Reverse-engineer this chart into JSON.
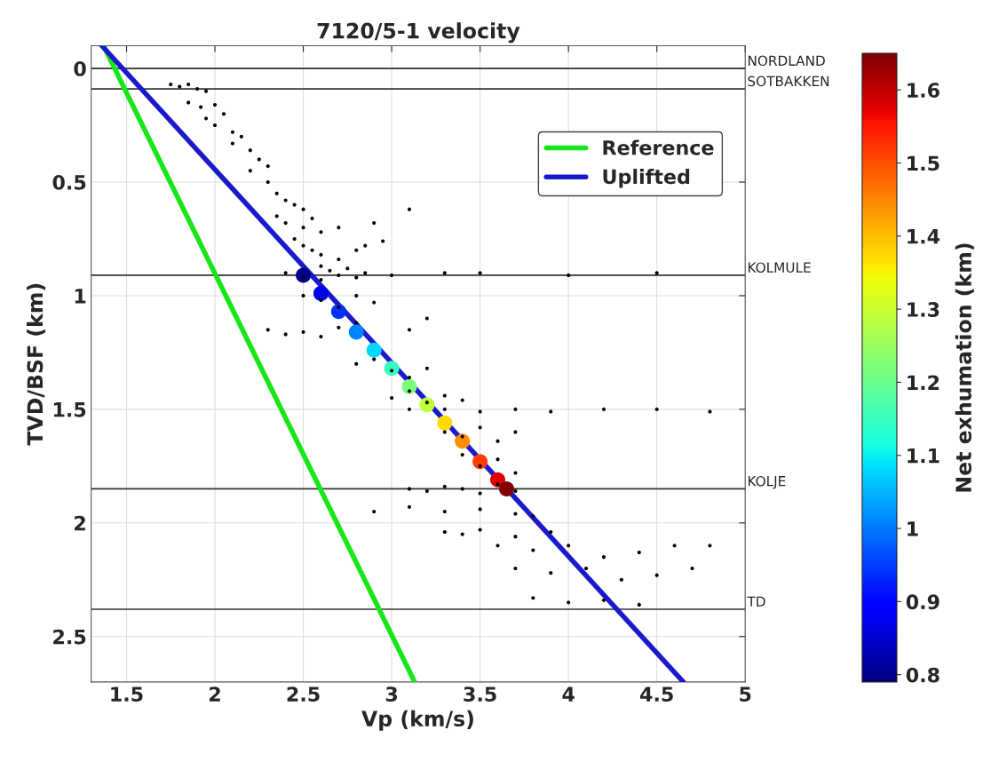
{
  "chart_data": {
    "type": "scatter",
    "title": "7120/5-1 velocity",
    "xlabel": "Vp (km/s)",
    "ylabel": "TVD/BSF (km)",
    "clabel": "Net exhumation (km)",
    "xlim": [
      1.3,
      5
    ],
    "ylim": [
      2.7,
      -0.1
    ],
    "xticks": [
      1.5,
      2,
      2.5,
      3,
      3.5,
      4,
      4.5,
      5
    ],
    "yticks": [
      0,
      0.5,
      1,
      1.5,
      2,
      2.5
    ],
    "clim": [
      0.79,
      1.65
    ],
    "cticks": [
      0.8,
      0.9,
      1,
      1.1,
      1.2,
      1.3,
      1.4,
      1.5,
      1.6
    ],
    "grid": true,
    "legend": "top right",
    "series": [
      {
        "color": "#000000",
        "marker": "circle",
        "x": [
          1.75,
          1.8,
          1.85,
          1.9,
          1.95,
          1.85,
          1.92,
          2.0,
          2.05,
          1.95,
          2.0,
          2.1,
          2.15,
          2.1,
          2.2,
          2.25,
          2.3,
          2.2,
          2.3,
          2.35,
          2.4,
          2.45,
          2.5,
          2.35,
          2.4,
          2.5,
          2.55,
          2.45,
          2.5,
          2.6,
          2.7,
          2.9,
          3.1,
          2.55,
          2.6,
          2.7,
          2.8,
          2.85,
          2.95,
          2.6,
          2.65,
          2.75,
          2.85,
          3.3,
          2.4,
          2.5,
          2.6,
          2.7,
          2.8,
          3.0,
          3.5,
          4.0,
          4.5,
          2.5,
          2.6,
          2.7,
          2.8,
          2.9,
          3.2,
          2.3,
          2.4,
          2.5,
          2.6,
          2.7,
          2.8,
          3.1,
          2.8,
          2.9,
          3.0,
          3.1,
          3.2,
          3.0,
          3.1,
          3.2,
          3.3,
          3.4,
          3.1,
          3.3,
          3.5,
          3.7,
          3.9,
          4.2,
          4.5,
          4.8,
          3.3,
          3.4,
          3.5,
          3.6,
          3.7,
          3.4,
          3.5,
          3.6,
          3.7,
          3.1,
          3.2,
          3.3,
          3.4,
          3.5,
          3.6,
          3.7,
          2.9,
          3.1,
          3.3,
          3.5,
          3.7,
          3.8,
          3.3,
          3.4,
          3.5,
          3.7,
          3.9,
          3.6,
          3.8,
          4.0,
          4.2,
          4.4,
          4.6,
          4.8,
          3.7,
          3.9,
          4.1,
          4.3,
          4.5,
          4.7,
          3.8,
          4.0,
          4.2,
          4.4
        ],
        "values": [
          0.07,
          0.08,
          0.07,
          0.09,
          0.1,
          0.15,
          0.17,
          0.16,
          0.2,
          0.22,
          0.25,
          0.28,
          0.3,
          0.33,
          0.36,
          0.4,
          0.43,
          0.45,
          0.5,
          0.55,
          0.58,
          0.6,
          0.62,
          0.65,
          0.68,
          0.7,
          0.66,
          0.75,
          0.78,
          0.72,
          0.7,
          0.68,
          0.62,
          0.8,
          0.82,
          0.84,
          0.8,
          0.78,
          0.76,
          0.87,
          0.89,
          0.88,
          0.9,
          0.9,
          0.9,
          0.92,
          0.93,
          0.91,
          0.92,
          0.91,
          0.9,
          0.91,
          0.9,
          1.0,
          1.02,
          1.05,
          1.0,
          1.03,
          1.1,
          1.15,
          1.17,
          1.16,
          1.18,
          1.14,
          1.12,
          1.15,
          1.3,
          1.28,
          1.33,
          1.36,
          1.32,
          1.45,
          1.42,
          1.47,
          1.44,
          1.46,
          1.5,
          1.5,
          1.51,
          1.5,
          1.51,
          1.5,
          1.5,
          1.51,
          1.6,
          1.62,
          1.58,
          1.64,
          1.6,
          1.7,
          1.75,
          1.72,
          1.78,
          1.85,
          1.86,
          1.84,
          1.85,
          1.87,
          1.83,
          1.86,
          1.95,
          1.93,
          1.95,
          1.94,
          1.96,
          1.97,
          2.04,
          2.05,
          2.03,
          2.06,
          2.04,
          2.1,
          2.12,
          2.1,
          2.15,
          2.13,
          2.1,
          2.1,
          2.2,
          2.22,
          2.2,
          2.25,
          2.23,
          2.2,
          2.33,
          2.35,
          2.34,
          2.36
        ]
      },
      {
        "type": "line",
        "name": "Reference",
        "color": "#19e619",
        "x": [
          1.37,
          3.13
        ],
        "values": [
          -0.1,
          2.7
        ]
      },
      {
        "type": "line",
        "name": "Uplifted",
        "color": "#1a1acc",
        "x": [
          1.36,
          4.65
        ],
        "values": [
          -0.1,
          2.7
        ]
      },
      {
        "type": "scatter",
        "marker": "circle",
        "x": [
          2.5,
          2.6,
          2.7,
          2.8,
          2.9,
          3.0,
          3.1,
          3.2,
          3.3,
          3.4,
          3.5,
          3.6,
          3.65
        ],
        "values": [
          0.91,
          0.99,
          1.07,
          1.16,
          1.24,
          1.32,
          1.4,
          1.48,
          1.56,
          1.64,
          1.73,
          1.81,
          1.85
        ],
        "colors": [
          "#000089",
          "#0000e8",
          "#0030ff",
          "#0084ff",
          "#00d8ff",
          "#39ffbe",
          "#7cff7a",
          "#beff39",
          "#ffdb00",
          "#ff8d00",
          "#ff3d00",
          "#de0000",
          "#800000"
        ]
      }
    ],
    "ref_lines": [
      {
        "axis": "y",
        "value": 0,
        "label": "NORDLAND",
        "color": "#333333"
      },
      {
        "axis": "y",
        "value": 0.09,
        "label": "SOTBAKKEN",
        "color": "#333333"
      },
      {
        "axis": "y",
        "value": 0.91,
        "label": "KOLMULE",
        "color": "#333333"
      },
      {
        "axis": "y",
        "value": 1.85,
        "label": "KOLJE",
        "color": "#333333"
      },
      {
        "axis": "y",
        "value": 2.38,
        "label": "TD",
        "color": "#333333"
      }
    ]
  }
}
